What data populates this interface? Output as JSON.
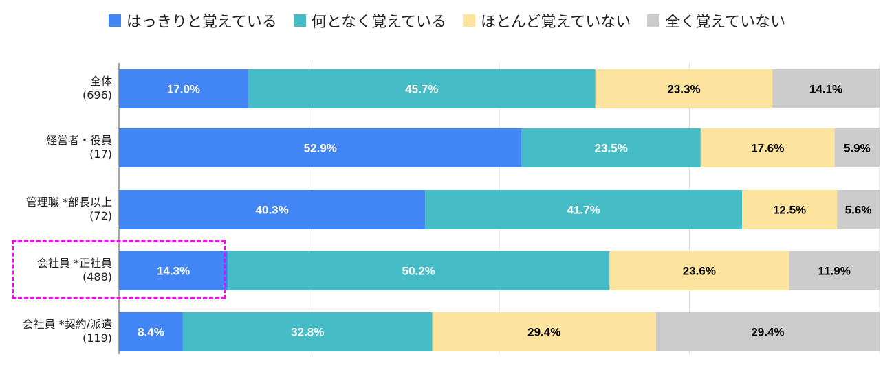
{
  "chart_data": {
    "type": "bar",
    "orientation": "horizontal",
    "stacked": true,
    "xlim": [
      0,
      100
    ],
    "grid": true,
    "legend_position": "top",
    "categories": [
      "全体",
      "経営者・役員",
      "管理職 *部長以上",
      "会社員 *正社員",
      "会社員 *契約/派遣"
    ],
    "counts": [
      "(696)",
      "(17)",
      "(72)",
      "(488)",
      "(119)"
    ],
    "highlighted_category": "会社員 *正社員",
    "series": [
      {
        "name": "はっきりと覚えている",
        "color": "#4285f4",
        "text_color": "#ffffff",
        "values": [
          17.0,
          52.9,
          40.3,
          14.3,
          8.4
        ]
      },
      {
        "name": "何となく覚えている",
        "color": "#46bdc6",
        "text_color": "#ffffff",
        "values": [
          45.7,
          23.5,
          41.7,
          50.2,
          32.8
        ]
      },
      {
        "name": "ほとんど覚えていない",
        "color": "#fde49e",
        "text_color": "#000000",
        "values": [
          23.3,
          17.6,
          12.5,
          23.6,
          29.4
        ]
      },
      {
        "name": "全く覚えていない",
        "color": "#cccccc",
        "text_color": "#000000",
        "values": [
          14.1,
          5.9,
          5.6,
          11.9,
          29.4
        ]
      }
    ]
  }
}
